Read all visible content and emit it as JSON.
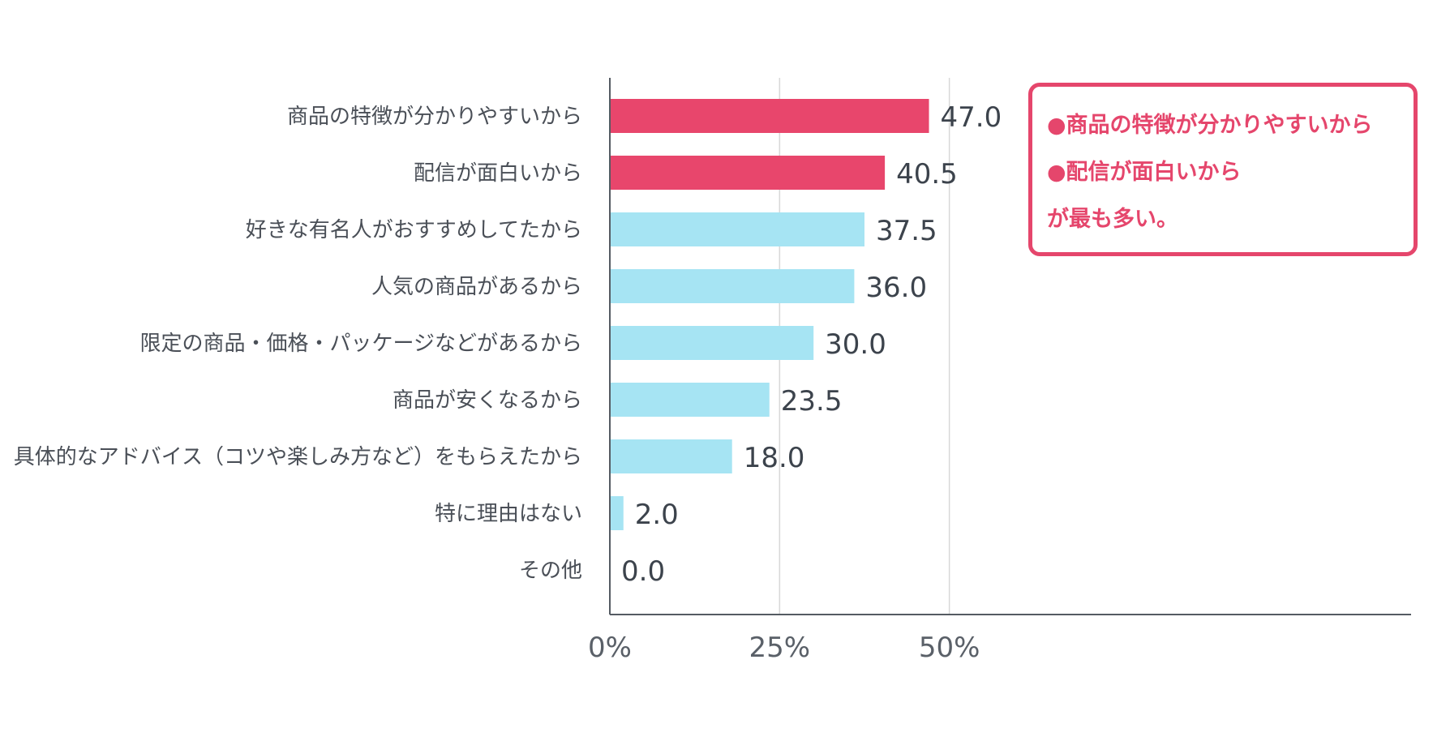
{
  "chart_data": {
    "type": "bar",
    "orientation": "horizontal",
    "categories": [
      "商品の特徴が分かりやすいから",
      "配信が面白いから",
      "好きな有名人がおすすめしてたから",
      "人気の商品があるから",
      "限定の商品・価格・パッケージなどがあるから",
      "商品が安くなるから",
      "具体的なアドバイス（コツや楽しみ方など）をもらえたから",
      "特に理由はない",
      "その他"
    ],
    "values": [
      47.0,
      40.5,
      37.5,
      36.0,
      30.0,
      23.5,
      18.0,
      2.0,
      0.0
    ],
    "value_labels": [
      "47.0",
      "40.5",
      "37.5",
      "36.0",
      "30.0",
      "23.5",
      "18.0",
      "2.0",
      "0.0"
    ],
    "highlight": [
      true,
      true,
      false,
      false,
      false,
      false,
      false,
      false,
      false
    ],
    "x_ticks": [
      0,
      25,
      50
    ],
    "x_tick_labels": [
      "0%",
      "25%",
      "50%"
    ],
    "xlim": [
      0,
      118
    ],
    "grid": true,
    "colors": {
      "highlight": "#e8466c",
      "normal": "#a6e4f3",
      "grid": "#d8d8d8",
      "axis": "#555b63"
    }
  },
  "note": {
    "lines": [
      "●商品の特徴が分かりやすいから",
      "●配信が面白いから",
      "が最も多い。"
    ],
    "color": "#e5466c"
  }
}
